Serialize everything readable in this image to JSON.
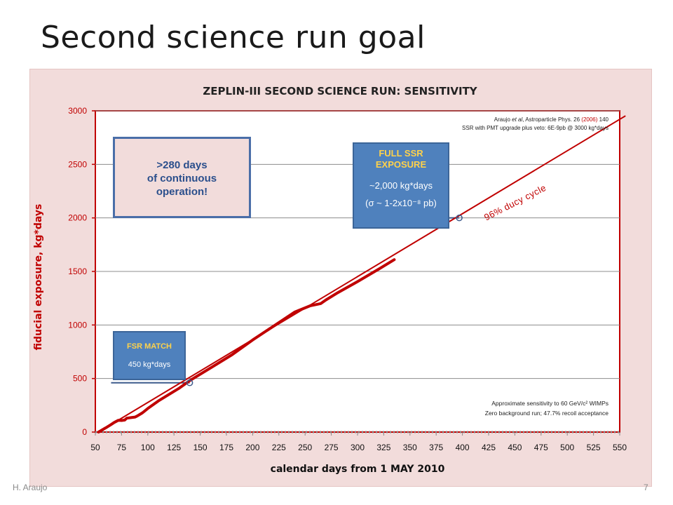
{
  "slide": {
    "title": "Second science run goal",
    "author": "H. Araujo",
    "page_number": "7"
  },
  "callouts": {
    "days_line1": ">280 days",
    "days_line2": "of continuous",
    "days_line3": "operation!",
    "fsr_header": "FSR MATCH",
    "fsr_value": "450 kg*days",
    "ssr_header1": "FULL SSR",
    "ssr_header2": "EXPOSURE",
    "ssr_value": "~2,000 kg*days",
    "ssr_sens": "(σ ~ 1-2x10⁻⁸ pb)"
  },
  "annotations": {
    "ref_author": "Araujo ",
    "ref_etal": "et al",
    "ref_journal": ", Astroparticle Phys. 26 ",
    "ref_year": "(2006)",
    "ref_page": " 140",
    "ref_line2": "SSR with PMT upgrade plus veto: 6E-9pb @ 3000 kg*days",
    "duty_cycle": "96% ducy cycle",
    "note1": "Approximate sensitivity to 60 GeV/c² WIMPs",
    "note2": "Zero background run; 47.7% recoil acceptance"
  },
  "colors": {
    "background": "#f2dcdb",
    "plot_bg": "#ffffff",
    "series": "#c00000",
    "callout_blue": "#4f81bd",
    "callout_header": "#ffd24a"
  },
  "chart_data": {
    "type": "line",
    "title": "ZEPLIN-III SECOND SCIENCE RUN: SENSITIVITY",
    "xlabel": "calendar days from 1 MAY 2010",
    "ylabel": "fiducial exposure, kg*days",
    "xlim": [
      50,
      550
    ],
    "ylim": [
      0,
      3000
    ],
    "xticks": [
      50,
      75,
      100,
      125,
      150,
      175,
      200,
      225,
      250,
      275,
      300,
      325,
      350,
      375,
      400,
      425,
      450,
      475,
      500,
      525,
      550
    ],
    "yticks": [
      0,
      500,
      1000,
      1500,
      2000,
      2500,
      3000
    ],
    "grid": "horizontal",
    "series": [
      {
        "style": "thick",
        "x": [
          53,
          60,
          65,
          68,
          72,
          75,
          78,
          80,
          84,
          88,
          90,
          95,
          100,
          110,
          120,
          130,
          140,
          150,
          160,
          180,
          200,
          220,
          240,
          255,
          265,
          270,
          280,
          300,
          320,
          335
        ],
        "y": [
          0,
          40,
          70,
          90,
          110,
          108,
          112,
          130,
          135,
          140,
          150,
          180,
          220,
          290,
          350,
          410,
          480,
          540,
          600,
          720,
          860,
          990,
          1120,
          1180,
          1200,
          1235,
          1295,
          1405,
          1520,
          1610
        ]
      },
      {
        "style": "thin",
        "x": [
          53,
          555
        ],
        "y": [
          0,
          2950
        ]
      }
    ],
    "markers": [
      {
        "x": 140,
        "y": 460
      },
      {
        "x": 397,
        "y": 2000
      }
    ],
    "reference_lines": [
      {
        "x1": 65,
        "x2": 140,
        "y": 460
      },
      {
        "x1": 300,
        "x2": 397,
        "y": 2000
      }
    ]
  }
}
